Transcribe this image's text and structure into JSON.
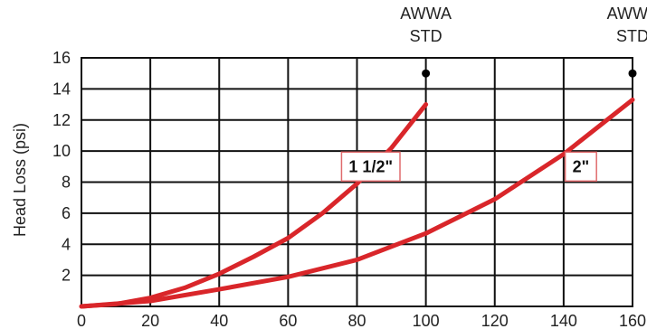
{
  "chart_data": {
    "type": "line",
    "title": "",
    "xlabel": "",
    "ylabel": "Head Loss (psi)",
    "xlim": [
      0,
      160
    ],
    "ylim": [
      0,
      16
    ],
    "x_ticks": [
      0,
      20,
      40,
      60,
      80,
      100,
      120,
      140,
      160
    ],
    "y_ticks": [
      2,
      4,
      6,
      8,
      10,
      12,
      14,
      16
    ],
    "grid": true,
    "legend": "none",
    "colors": {
      "grid": "#111111",
      "line": "#d9262a",
      "text": "#222222",
      "marker": "#000000",
      "label_border": "#e06b6d"
    },
    "series": [
      {
        "name": "1 1/2\"",
        "color": "#d9262a",
        "x": [
          0,
          10,
          20,
          30,
          40,
          50,
          60,
          70,
          80,
          90,
          100
        ],
        "y": [
          0,
          0.15,
          0.55,
          1.2,
          2.1,
          3.2,
          4.4,
          6.0,
          7.9,
          10.2,
          13.0
        ]
      },
      {
        "name": "2\"",
        "color": "#d9262a",
        "x": [
          0,
          20,
          40,
          60,
          80,
          100,
          120,
          140,
          160
        ],
        "y": [
          0,
          0.35,
          1.1,
          1.9,
          3.0,
          4.7,
          6.9,
          9.8,
          13.3
        ]
      }
    ],
    "annotations": [
      {
        "id": "awwa-100",
        "x": 100,
        "y": 15,
        "line1": "AWWA",
        "line2": "STD"
      },
      {
        "id": "awwa-160",
        "x": 160,
        "y": 15,
        "line1": "AWWA",
        "line2": "STD"
      }
    ],
    "series_labels": [
      {
        "text": "1 1/2\"",
        "x": 84,
        "y": 9
      },
      {
        "text": "2\"",
        "x": 145,
        "y": 9
      }
    ]
  }
}
